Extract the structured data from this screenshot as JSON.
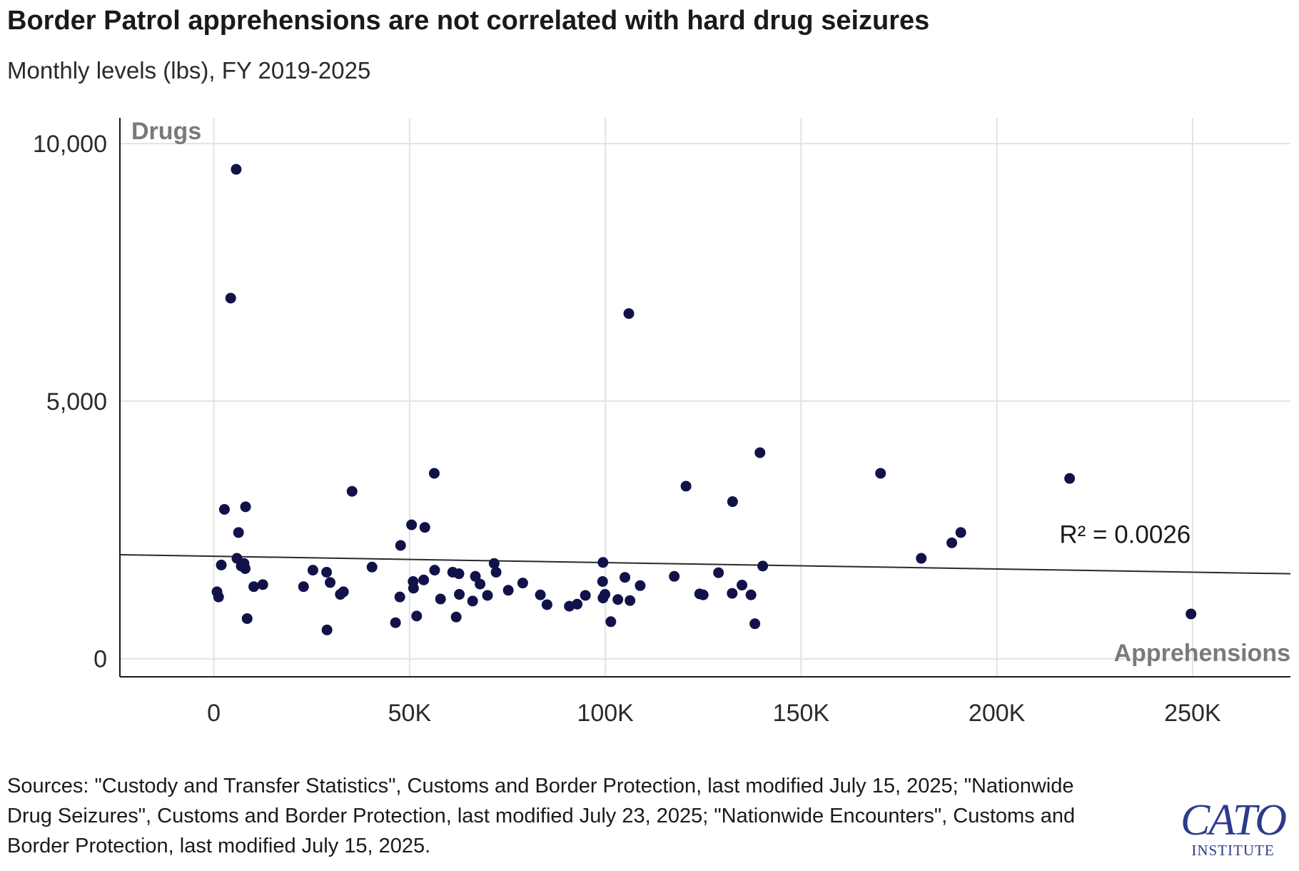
{
  "title": "Border Patrol apprehensions are not correlated with hard drug seizures",
  "subtitle": "Monthly levels (lbs), FY 2019-2025",
  "sources": "Sources: \"Custody and Transfer Statistics\", Customs and Border Protection, last modified July 15, 2025; \"Nationwide Drug Seizures\", Customs and Border Protection, last modified July 23, 2025; \"Nationwide Encounters\", Customs and Border Protection, last modified July 15, 2025.",
  "logo": {
    "main": "CATO",
    "sub": "INSTITUTE"
  },
  "colors": {
    "point": "#12124a",
    "gridline": "#e3e3e3",
    "axis": "#1a1a1a",
    "corner_label": "#7a7a7a",
    "logo": "#2d3a8c"
  },
  "chart_data": {
    "type": "scatter",
    "title": "Border Patrol apprehensions are not correlated with hard drug seizures",
    "subtitle": "Monthly levels (lbs), FY 2019-2025",
    "xlabel": "Apprehensions",
    "ylabel": "Drugs",
    "xlim": [
      -24000,
      275000
    ],
    "ylim": [
      -350,
      10500
    ],
    "x_ticks": [
      0,
      50000,
      100000,
      150000,
      200000,
      250000
    ],
    "x_tick_labels": [
      "0",
      "50K",
      "100K",
      "150K",
      "200K",
      "250K"
    ],
    "y_ticks": [
      0,
      5000,
      10000
    ],
    "y_tick_labels": [
      "0",
      "5,000",
      "10,000"
    ],
    "grid": true,
    "trendline": {
      "type": "linear",
      "points": [
        [
          -24000,
          2020
        ],
        [
          275000,
          1650
        ]
      ],
      "label": "R² = 0.0026"
    },
    "points": [
      [
        5700,
        9500
      ],
      [
        4300,
        7000
      ],
      [
        106000,
        6700
      ],
      [
        139500,
        4000
      ],
      [
        56300,
        3600
      ],
      [
        170300,
        3600
      ],
      [
        218600,
        3500
      ],
      [
        35300,
        3250
      ],
      [
        120600,
        3350
      ],
      [
        132500,
        3050
      ],
      [
        2700,
        2900
      ],
      [
        8100,
        2950
      ],
      [
        50500,
        2600
      ],
      [
        53900,
        2550
      ],
      [
        6300,
        2450
      ],
      [
        190800,
        2450
      ],
      [
        47700,
        2200
      ],
      [
        188500,
        2250
      ],
      [
        180700,
        1950
      ],
      [
        5900,
        1950
      ],
      [
        99400,
        1870
      ],
      [
        1900,
        1820
      ],
      [
        7000,
        1800
      ],
      [
        7700,
        1850
      ],
      [
        8000,
        1750
      ],
      [
        140200,
        1800
      ],
      [
        40400,
        1780
      ],
      [
        25300,
        1720
      ],
      [
        28800,
        1680
      ],
      [
        56400,
        1720
      ],
      [
        61000,
        1680
      ],
      [
        72100,
        1680
      ],
      [
        62600,
        1650
      ],
      [
        128900,
        1670
      ],
      [
        105000,
        1580
      ],
      [
        117600,
        1600
      ],
      [
        71600,
        1850
      ],
      [
        66800,
        1600
      ],
      [
        99300,
        1500
      ],
      [
        50900,
        1500
      ],
      [
        53600,
        1530
      ],
      [
        29700,
        1480
      ],
      [
        12500,
        1440
      ],
      [
        10200,
        1400
      ],
      [
        22900,
        1400
      ],
      [
        68000,
        1450
      ],
      [
        51000,
        1370
      ],
      [
        78900,
        1470
      ],
      [
        108900,
        1420
      ],
      [
        134900,
        1430
      ],
      [
        75200,
        1330
      ],
      [
        33100,
        1300
      ],
      [
        32300,
        1250
      ],
      [
        62700,
        1250
      ],
      [
        69900,
        1230
      ],
      [
        83400,
        1240
      ],
      [
        94900,
        1230
      ],
      [
        124100,
        1260
      ],
      [
        125000,
        1240
      ],
      [
        132400,
        1270
      ],
      [
        137200,
        1240
      ],
      [
        800,
        1300
      ],
      [
        1200,
        1200
      ],
      [
        47500,
        1200
      ],
      [
        57900,
        1160
      ],
      [
        99400,
        1180
      ],
      [
        99900,
        1250
      ],
      [
        103200,
        1150
      ],
      [
        106300,
        1130
      ],
      [
        66100,
        1120
      ],
      [
        85100,
        1050
      ],
      [
        90800,
        1020
      ],
      [
        92800,
        1060
      ],
      [
        8500,
        780
      ],
      [
        51800,
        830
      ],
      [
        61900,
        810
      ],
      [
        46400,
        700
      ],
      [
        101400,
        720
      ],
      [
        138200,
        680
      ],
      [
        249600,
        870
      ],
      [
        28900,
        560
      ]
    ],
    "corner_labels": {
      "y_axis": "Drugs",
      "x_axis": "Apprehensions"
    }
  }
}
